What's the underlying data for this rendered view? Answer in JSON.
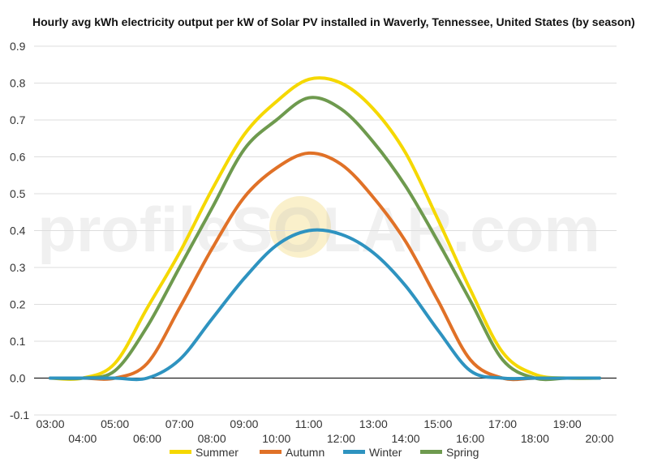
{
  "chart_data": {
    "type": "line",
    "title": "Hourly avg kWh electricity output per kW of Solar PV installed in Waverly, Tennessee, United States (by season)",
    "xlabel": "",
    "ylabel": "",
    "watermark": "profileSOLAR.com",
    "ylim": [
      -0.1,
      0.9
    ],
    "y_ticks": [
      "-0.1",
      "0.0",
      "0.1",
      "0.2",
      "0.3",
      "0.4",
      "0.5",
      "0.6",
      "0.7",
      "0.8",
      "0.9"
    ],
    "x": [
      "03:00",
      "04:00",
      "05:00",
      "06:00",
      "07:00",
      "08:00",
      "09:00",
      "10:00",
      "11:00",
      "12:00",
      "13:00",
      "14:00",
      "15:00",
      "16:00",
      "17:00",
      "18:00",
      "19:00",
      "20:00"
    ],
    "grid": true,
    "legend_position": "bottom",
    "series": [
      {
        "name": "Summer",
        "color": "#f5d800",
        "values": [
          0.0,
          0.0,
          0.04,
          0.19,
          0.34,
          0.51,
          0.66,
          0.75,
          0.81,
          0.8,
          0.73,
          0.61,
          0.43,
          0.24,
          0.07,
          0.01,
          0.0,
          0.0
        ]
      },
      {
        "name": "Autumn",
        "color": "#e07127",
        "values": [
          0.0,
          0.0,
          0.0,
          0.04,
          0.19,
          0.35,
          0.49,
          0.57,
          0.61,
          0.58,
          0.49,
          0.37,
          0.21,
          0.05,
          0.0,
          0.0,
          0.0,
          0.0
        ]
      },
      {
        "name": "Winter",
        "color": "#2e93c0",
        "values": [
          0.0,
          0.0,
          0.0,
          0.0,
          0.05,
          0.16,
          0.27,
          0.36,
          0.4,
          0.39,
          0.34,
          0.25,
          0.13,
          0.02,
          0.0,
          0.0,
          0.0,
          0.0
        ]
      },
      {
        "name": "Spring",
        "color": "#6e9a4e",
        "values": [
          0.0,
          0.0,
          0.02,
          0.14,
          0.3,
          0.46,
          0.62,
          0.7,
          0.76,
          0.73,
          0.64,
          0.52,
          0.37,
          0.21,
          0.05,
          0.0,
          0.0,
          0.0
        ]
      }
    ]
  }
}
